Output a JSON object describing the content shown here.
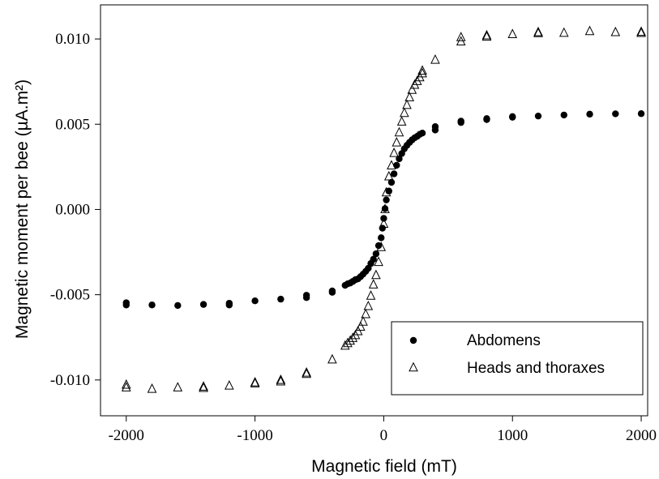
{
  "chart_data": {
    "type": "scatter",
    "title": "",
    "xlabel": "Magnetic field (mT)",
    "ylabel": "Magnetic moment per bee (µA.m²)",
    "xlim": [
      -2200,
      2050
    ],
    "ylim": [
      -0.0121,
      0.012
    ],
    "xticks": [
      -2000,
      -1000,
      0,
      1000,
      2000
    ],
    "xtick_labels": [
      "-2000",
      "-1000",
      "0",
      "1000",
      "2000"
    ],
    "yticks": [
      -0.01,
      -0.005,
      0.0,
      0.005,
      0.01
    ],
    "ytick_labels": [
      "-0.010",
      "-0.005",
      "0.000",
      "0.005",
      "0.010"
    ],
    "grid": false,
    "legend_position": "bottom-right",
    "series": [
      {
        "name": "Abdomens",
        "marker": "filled-circle",
        "color": "#000000",
        "points": [
          [
            -2000,
            -0.00547
          ],
          [
            -2000,
            -0.0056
          ],
          [
            -1800,
            -0.0056
          ],
          [
            -1600,
            -0.00563
          ],
          [
            -1400,
            -0.00557
          ],
          [
            -1200,
            -0.0055
          ],
          [
            -1200,
            -0.0056
          ],
          [
            -1000,
            -0.00536
          ],
          [
            -800,
            -0.00526
          ],
          [
            -600,
            -0.00503
          ],
          [
            -600,
            -0.00517
          ],
          [
            -400,
            -0.00478
          ],
          [
            -400,
            -0.00486
          ],
          [
            -300,
            -0.00445
          ],
          [
            -280,
            -0.00436
          ],
          [
            -260,
            -0.00431
          ],
          [
            -240,
            -0.00422
          ],
          [
            -220,
            -0.00412
          ],
          [
            -200,
            -0.00407
          ],
          [
            -180,
            -0.00394
          ],
          [
            -160,
            -0.00379
          ],
          [
            -140,
            -0.00363
          ],
          [
            -120,
            -0.00345
          ],
          [
            -100,
            -0.00317
          ],
          [
            -80,
            -0.00292
          ],
          [
            -60,
            -0.0026
          ],
          [
            -40,
            -0.00212
          ],
          [
            -20,
            -0.00166
          ],
          [
            -10,
            -0.0011
          ],
          [
            0,
            -0.00052
          ],
          [
            10,
            5e-05
          ],
          [
            20,
            0.00056
          ],
          [
            40,
            0.00108
          ],
          [
            60,
            0.00159
          ],
          [
            80,
            0.00209
          ],
          [
            100,
            0.00259
          ],
          [
            120,
            0.00297
          ],
          [
            140,
            0.00328
          ],
          [
            160,
            0.00356
          ],
          [
            180,
            0.00376
          ],
          [
            200,
            0.00393
          ],
          [
            220,
            0.00408
          ],
          [
            240,
            0.0042
          ],
          [
            260,
            0.00429
          ],
          [
            280,
            0.00441
          ],
          [
            300,
            0.00448
          ],
          [
            400,
            0.00466
          ],
          [
            400,
            0.00486
          ],
          [
            600,
            0.0051
          ],
          [
            600,
            0.00518
          ],
          [
            800,
            0.00527
          ],
          [
            800,
            0.00533
          ],
          [
            1000,
            0.00541
          ],
          [
            1000,
            0.00545
          ],
          [
            1200,
            0.00548
          ],
          [
            1400,
            0.00554
          ],
          [
            1600,
            0.00559
          ],
          [
            1800,
            0.00561
          ],
          [
            2000,
            0.00562
          ]
        ]
      },
      {
        "name": "Heads and thoraxes",
        "marker": "open-triangle",
        "color": "#000000",
        "points": [
          [
            -2000,
            -0.01026
          ],
          [
            -2000,
            -0.01042
          ],
          [
            -1800,
            -0.0105
          ],
          [
            -1600,
            -0.01042
          ],
          [
            -1400,
            -0.01037
          ],
          [
            -1400,
            -0.01045
          ],
          [
            -1200,
            -0.01031
          ],
          [
            -1000,
            -0.01012
          ],
          [
            -1000,
            -0.01018
          ],
          [
            -800,
            -0.00998
          ],
          [
            -800,
            -0.01007
          ],
          [
            -600,
            -0.00955
          ],
          [
            -600,
            -0.00963
          ],
          [
            -400,
            -0.00878
          ],
          [
            -300,
            -0.00797
          ],
          [
            -280,
            -0.00782
          ],
          [
            -260,
            -0.00768
          ],
          [
            -240,
            -0.00752
          ],
          [
            -220,
            -0.00735
          ],
          [
            -200,
            -0.00712
          ],
          [
            -180,
            -0.00686
          ],
          [
            -160,
            -0.00656
          ],
          [
            -140,
            -0.00612
          ],
          [
            -120,
            -0.00565
          ],
          [
            -100,
            -0.00504
          ],
          [
            -80,
            -0.00438
          ],
          [
            -60,
            -0.00383
          ],
          [
            -40,
            -0.00306
          ],
          [
            -20,
            -0.00219
          ],
          [
            0,
            -0.00082
          ],
          [
            10,
            4e-05
          ],
          [
            20,
            0.00102
          ],
          [
            40,
            0.00196
          ],
          [
            60,
            0.0026
          ],
          [
            80,
            0.00333
          ],
          [
            100,
            0.00395
          ],
          [
            120,
            0.00454
          ],
          [
            140,
            0.00517
          ],
          [
            160,
            0.00568
          ],
          [
            180,
            0.00615
          ],
          [
            200,
            0.0066
          ],
          [
            220,
            0.00703
          ],
          [
            240,
            0.00733
          ],
          [
            260,
            0.00755
          ],
          [
            280,
            0.00777
          ],
          [
            300,
            0.008
          ],
          [
            300,
            0.00816
          ],
          [
            400,
            0.0088
          ],
          [
            600,
            0.00987
          ],
          [
            600,
            0.01012
          ],
          [
            800,
            0.01015
          ],
          [
            800,
            0.01023
          ],
          [
            1000,
            0.0103
          ],
          [
            1200,
            0.01036
          ],
          [
            1200,
            0.01042
          ],
          [
            1400,
            0.01038
          ],
          [
            1600,
            0.01048
          ],
          [
            1800,
            0.01042
          ],
          [
            2000,
            0.01037
          ],
          [
            2000,
            0.01044
          ]
        ]
      }
    ]
  }
}
